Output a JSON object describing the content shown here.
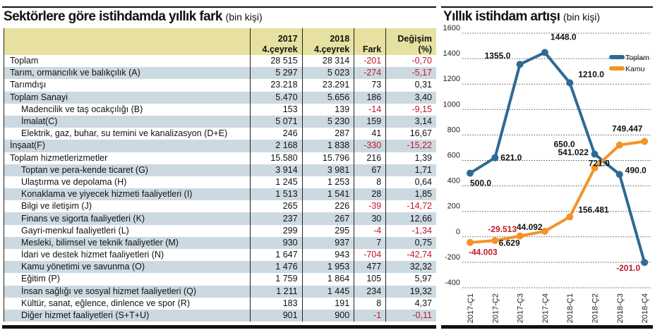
{
  "table": {
    "title": "Sektörlere göre istihdamda yıllık fark",
    "subtitle": "(bin kişi)",
    "headers": [
      " ",
      [
        "2017",
        "4.çeyrek"
      ],
      [
        "2018",
        "4.çeyrek"
      ],
      "Fark",
      [
        "Değişim",
        "(%)"
      ]
    ],
    "rows": [
      {
        "label": "Toplam",
        "v2017": "28 515",
        "v2018": "28 314",
        "fark": "-201",
        "pct": "-0,70"
      },
      {
        "label": "Tarım, ormancılık ve balıkçılık (A)",
        "v2017": "5 297",
        "v2018": "5 023",
        "fark": "-274",
        "pct": "-5,17"
      },
      {
        "label": "Tarımdışı",
        "v2017": "23.218",
        "v2018": "23.291",
        "fark": "73",
        "pct": "0,31"
      },
      {
        "label": "Toplam Sanayi",
        "v2017": "5.470",
        "v2018": "5.656",
        "fark": "186",
        "pct": "3,40"
      },
      {
        "label": "Madencilik ve taş ocakçılığı (B)",
        "indent": true,
        "v2017": "153",
        "v2018": "139",
        "fark": "-14",
        "pct": "-9,15"
      },
      {
        "label": "İmalat(C)",
        "indent": true,
        "v2017": "5 071",
        "v2018": "5 230",
        "fark": "159",
        "pct": "3,14"
      },
      {
        "label": "Elektrik, gaz, buhar, su temini ve kanalizasyon (D+E)",
        "indent": true,
        "v2017": "246",
        "v2018": "287",
        "fark": "41",
        "pct": "16,67"
      },
      {
        "label": "İnşaat(F)",
        "v2017": "2 168",
        "v2018": "1 838",
        "fark": "-330",
        "pct": "-15,22"
      },
      {
        "label": "Toplam hizmetlerizmetler",
        "v2017": "15.580",
        "v2018": "15.796",
        "fark": "216",
        "pct": "1,39"
      },
      {
        "label": "Toptan ve pera-kende ticaret (G)",
        "indent": true,
        "v2017": "3 914",
        "v2018": "3 981",
        "fark": "67",
        "pct": "1,71"
      },
      {
        "label": "Ulaştırma ve depolama (H)",
        "indent": true,
        "v2017": "1 245",
        "v2018": "1 253",
        "fark": "8",
        "pct": "0,64"
      },
      {
        "label": "Konaklama ve yiyecek hizmeti faaliyetleri (I)",
        "indent": true,
        "v2017": "1 513",
        "v2018": "1 541",
        "fark": "28",
        "pct": "1,85"
      },
      {
        "label": "Bilgi ve iletişim (J)",
        "indent": true,
        "v2017": "265",
        "v2018": "226",
        "fark": "-39",
        "pct": "-14,72"
      },
      {
        "label": "Finans ve sigorta faaliyetleri (K)",
        "indent": true,
        "v2017": "237",
        "v2018": "267",
        "fark": "30",
        "pct": "12,66"
      },
      {
        "label": "Gayri-menkul faaliyetleri (L)",
        "indent": true,
        "v2017": "299",
        "v2018": "295",
        "fark": "-4",
        "pct": "-1,34"
      },
      {
        "label": "Mesleki, bilimsel ve teknik faaliyetler (M)",
        "indent": true,
        "v2017": "930",
        "v2018": "937",
        "fark": "7",
        "pct": "0,75"
      },
      {
        "label": "İdari ve destek hizmet faaliyetleri (N)",
        "indent": true,
        "v2017": "1 647",
        "v2018": "943",
        "fark": "-704",
        "pct": "-42,74"
      },
      {
        "label": "Kamu yönetimi ve savunma (O)",
        "indent": true,
        "v2017": "1 476",
        "v2018": "1 953",
        "fark": "477",
        "pct": "32,32"
      },
      {
        "label": "Eğitim (P)",
        "indent": true,
        "v2017": "1 759",
        "v2018": "1 864",
        "fark": "105",
        "pct": "5,97"
      },
      {
        "label": "İnsan sağlığı ve sosyal hizmet faaliyetleri (Q)",
        "indent": true,
        "v2017": "1 211",
        "v2018": "1 445",
        "fark": "234",
        "pct": "19,32"
      },
      {
        "label": "Kültür, sanat, eğlence, dinlence ve spor (R)",
        "indent": true,
        "v2017": "183",
        "v2018": "191",
        "fark": "8",
        "pct": "4,37"
      },
      {
        "label": "Diğer hizmet faaliyetleri (S+T+U)",
        "indent": true,
        "v2017": "901",
        "v2018": "900",
        "fark": "-1",
        "pct": "-0,11"
      }
    ],
    "colors": {
      "header": "#e6e1a0",
      "shaded": "#ccd9e1",
      "negative": "#c0182b"
    }
  },
  "chart_data": {
    "type": "line",
    "title": "Yıllık istihdam artışı",
    "subtitle": "(bin kişi)",
    "categories": [
      "2017-Ç1",
      "2017-Ç2",
      "2017-Ç3",
      "2017-Ç4",
      "2018-Ç1",
      "2018-Ç2",
      "2018-Ç3",
      "2018-Ç4"
    ],
    "ylim": [
      -400,
      1600
    ],
    "yticks": [
      1600,
      1400,
      1200,
      1000,
      800,
      600,
      400,
      200,
      0,
      -200,
      -400
    ],
    "grid": true,
    "legend": "top-right",
    "series": [
      {
        "name": "Toplam",
        "color": "#2e6a94",
        "values": [
          500,
          621,
          1355,
          1448,
          1210,
          650,
          490,
          -201
        ],
        "labels": [
          "500.0",
          "621.0",
          "1355.0",
          "1448.0",
          "1210.0",
          "650.0",
          "490.0",
          "-201.0"
        ]
      },
      {
        "name": "Kamu",
        "color": "#f39425",
        "values": [
          -44.003,
          -29.513,
          6.629,
          44.092,
          156.481,
          541.022,
          721.0,
          749.447
        ],
        "labels": [
          "-44.003",
          "-29.513",
          "6.629",
          "44.092",
          "156.481",
          "541.022",
          "721.0",
          "749.447"
        ]
      }
    ],
    "negative_label_color": "#c0182b"
  }
}
